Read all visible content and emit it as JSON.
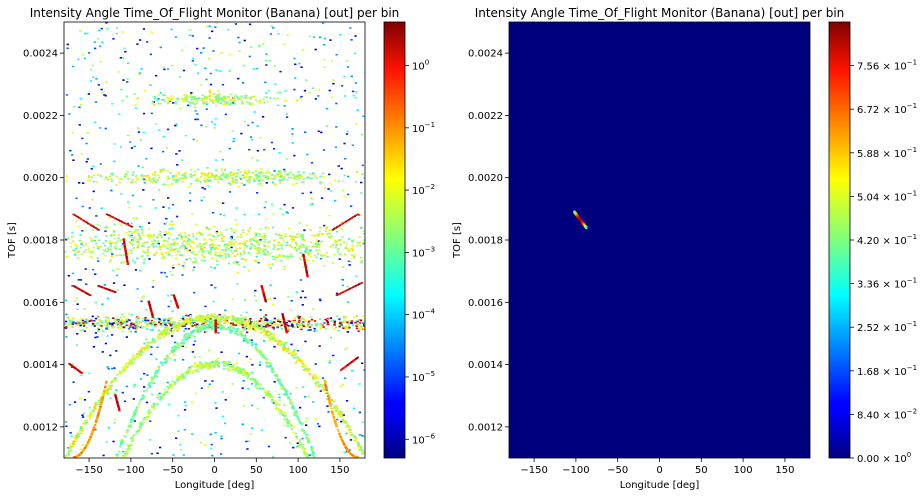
{
  "chart_data": [
    {
      "type": "heatmap",
      "title": "Intensity Angle Time_Of_Flight Monitor (Banana) [out] per bin",
      "xlabel": "Longitude [deg]",
      "ylabel": "TOF [s]",
      "xlim": [
        -180,
        180
      ],
      "ylim": [
        0.0011,
        0.0025
      ],
      "xticks": [
        {
          "value": -150,
          "label": "−150"
        },
        {
          "value": -100,
          "label": "−100"
        },
        {
          "value": -50,
          "label": "−50"
        },
        {
          "value": 0,
          "label": "0"
        },
        {
          "value": 50,
          "label": "50"
        },
        {
          "value": 100,
          "label": "100"
        },
        {
          "value": 150,
          "label": "150"
        }
      ],
      "yticks": [
        {
          "value": 0.0012,
          "label": "0.0012"
        },
        {
          "value": 0.0014,
          "label": "0.0014"
        },
        {
          "value": 0.0016,
          "label": "0.0016"
        },
        {
          "value": 0.0018,
          "label": "0.0018"
        },
        {
          "value": 0.002,
          "label": "0.0020"
        },
        {
          "value": 0.0022,
          "label": "0.0022"
        },
        {
          "value": 0.0024,
          "label": "0.0024"
        }
      ],
      "colormap": "jet",
      "background": "#ffffff",
      "colorbar": {
        "scale": "log",
        "range": [
          5e-07,
          5
        ],
        "ticks": [
          {
            "value": 1e-06,
            "base": "10",
            "exp": "−6"
          },
          {
            "value": 1e-05,
            "base": "10",
            "exp": "−5"
          },
          {
            "value": 0.0001,
            "base": "10",
            "exp": "−4"
          },
          {
            "value": 0.001,
            "base": "10",
            "exp": "−3"
          },
          {
            "value": 0.01,
            "base": "10",
            "exp": "−2"
          },
          {
            "value": 0.1,
            "base": "10",
            "exp": "−1"
          },
          {
            "value": 1,
            "base": "10",
            "exp": "0"
          }
        ]
      }
    },
    {
      "type": "heatmap",
      "title": "Intensity Angle Time_Of_Flight Monitor (Banana) [out] per bin",
      "xlabel": "Longitude [deg]",
      "ylabel": "TOF [s]",
      "xlim": [
        -180,
        180
      ],
      "ylim": [
        0.0011,
        0.0025
      ],
      "xticks": [
        {
          "value": -150,
          "label": "−150"
        },
        {
          "value": -100,
          "label": "−100"
        },
        {
          "value": -50,
          "label": "−50"
        },
        {
          "value": 0,
          "label": "0"
        },
        {
          "value": 50,
          "label": "50"
        },
        {
          "value": 100,
          "label": "100"
        },
        {
          "value": 150,
          "label": "150"
        }
      ],
      "yticks": [
        {
          "value": 0.0012,
          "label": "0.0012"
        },
        {
          "value": 0.0014,
          "label": "0.0014"
        },
        {
          "value": 0.0016,
          "label": "0.0016"
        },
        {
          "value": 0.0018,
          "label": "0.0018"
        },
        {
          "value": 0.002,
          "label": "0.0020"
        },
        {
          "value": 0.0022,
          "label": "0.0022"
        },
        {
          "value": 0.0024,
          "label": "0.0024"
        }
      ],
      "colormap": "jet",
      "background": "#00007f",
      "hotspot": {
        "x_range": [
          -102,
          -88
        ],
        "y_range": [
          0.00184,
          0.00189
        ],
        "peak": 0.8
      },
      "colorbar": {
        "scale": "linear",
        "range": [
          0,
          0.84
        ],
        "ticks": [
          {
            "value": 0,
            "mant": "0.00",
            "base": "10",
            "exp": "0"
          },
          {
            "value": 0.084,
            "mant": "8.40",
            "base": "10",
            "exp": "−2"
          },
          {
            "value": 0.168,
            "mant": "1.68",
            "base": "10",
            "exp": "−1"
          },
          {
            "value": 0.252,
            "mant": "2.52",
            "base": "10",
            "exp": "−1"
          },
          {
            "value": 0.336,
            "mant": "3.36",
            "base": "10",
            "exp": "−1"
          },
          {
            "value": 0.42,
            "mant": "4.20",
            "base": "10",
            "exp": "−1"
          },
          {
            "value": 0.504,
            "mant": "5.04",
            "base": "10",
            "exp": "−1"
          },
          {
            "value": 0.588,
            "mant": "5.88",
            "base": "10",
            "exp": "−1"
          },
          {
            "value": 0.672,
            "mant": "6.72",
            "base": "10",
            "exp": "−1"
          },
          {
            "value": 0.756,
            "mant": "7.56",
            "base": "10",
            "exp": "−1"
          }
        ]
      }
    }
  ]
}
